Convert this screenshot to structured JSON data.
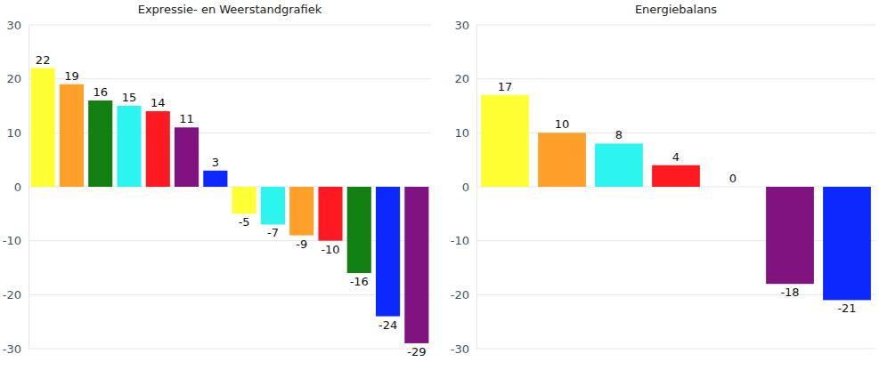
{
  "chart_data": [
    {
      "type": "bar",
      "title": "Expressie- en Weerstandgrafiek",
      "categories": [
        null,
        null,
        null,
        null,
        null,
        null,
        null,
        null,
        null,
        null,
        null,
        null,
        null,
        null
      ],
      "values": [
        22,
        19,
        16,
        15,
        14,
        11,
        3,
        -5,
        -7,
        -9,
        -10,
        -16,
        -24,
        -29
      ],
      "colors": [
        "#ffff33",
        "#ffa02a",
        "#138013",
        "#2cf4ee",
        "#ff1a22",
        "#80137f",
        "#0a28ff",
        "#ffff33",
        "#2cf4ee",
        "#ffa02a",
        "#ff1a22",
        "#138013",
        "#0a28ff",
        "#80137f"
      ],
      "ylim": [
        -30,
        30
      ],
      "yticks": [
        -30,
        -20,
        -10,
        0,
        10,
        20,
        30
      ],
      "grid": true,
      "data_labels": true,
      "tick_labels": "y"
    },
    {
      "type": "bar",
      "title": "Energiebalans",
      "categories": [
        null,
        null,
        null,
        null,
        null,
        null,
        null
      ],
      "values": [
        17,
        10,
        8,
        4,
        0,
        -18,
        -21
      ],
      "colors": [
        "#ffff33",
        "#ffa02a",
        "#2cf4ee",
        "#ff1a22",
        "#138013",
        "#80137f",
        "#0a28ff"
      ],
      "ylim": [
        -30,
        30
      ],
      "yticks": [
        -30,
        -20,
        -10,
        0,
        10,
        20,
        30
      ],
      "grid": true,
      "data_labels": true,
      "tick_labels": "y"
    }
  ]
}
